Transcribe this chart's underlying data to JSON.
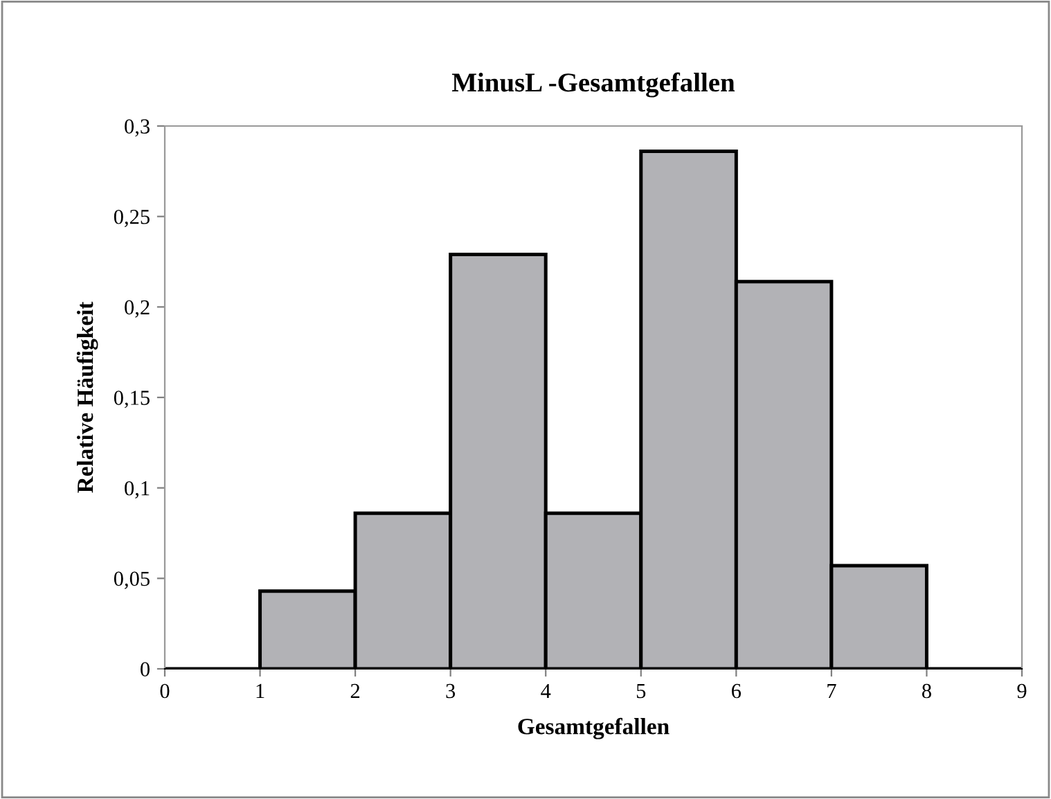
{
  "chart_data": {
    "type": "histogram",
    "title": "MinusL -Gesamtgefallen",
    "xlabel": "Gesamtgefallen",
    "ylabel": "Relative Häufigkeit",
    "bins": [
      0,
      1,
      2,
      3,
      4,
      5,
      6,
      7,
      8,
      9
    ],
    "values": [
      0,
      0.043,
      0.086,
      0.229,
      0.086,
      0.286,
      0.214,
      0.057,
      0
    ],
    "colors": [
      "#000000",
      "#b2b2b6",
      "#b2b2b6",
      "#b2b2b6",
      "#b2b2b6",
      "#b2b2b6",
      "#b2b2b6",
      "#b2b2b6",
      "#000000"
    ],
    "xlim": [
      0,
      9
    ],
    "xticks": [
      0,
      1,
      2,
      3,
      4,
      5,
      6,
      7,
      8,
      9
    ],
    "ylim": [
      0,
      0.3
    ],
    "yticks": [
      0,
      {
        "value": 0.05,
        "label": "0,05"
      },
      {
        "value": 0.1,
        "label": "0,1"
      },
      {
        "value": 0.15,
        "label": "0,15"
      },
      {
        "value": 0.2,
        "label": "0,2"
      },
      {
        "value": 0.25,
        "label": "0,25"
      },
      {
        "value": 0.3,
        "label": "0,3"
      }
    ],
    "grid": false,
    "legend": false
  }
}
